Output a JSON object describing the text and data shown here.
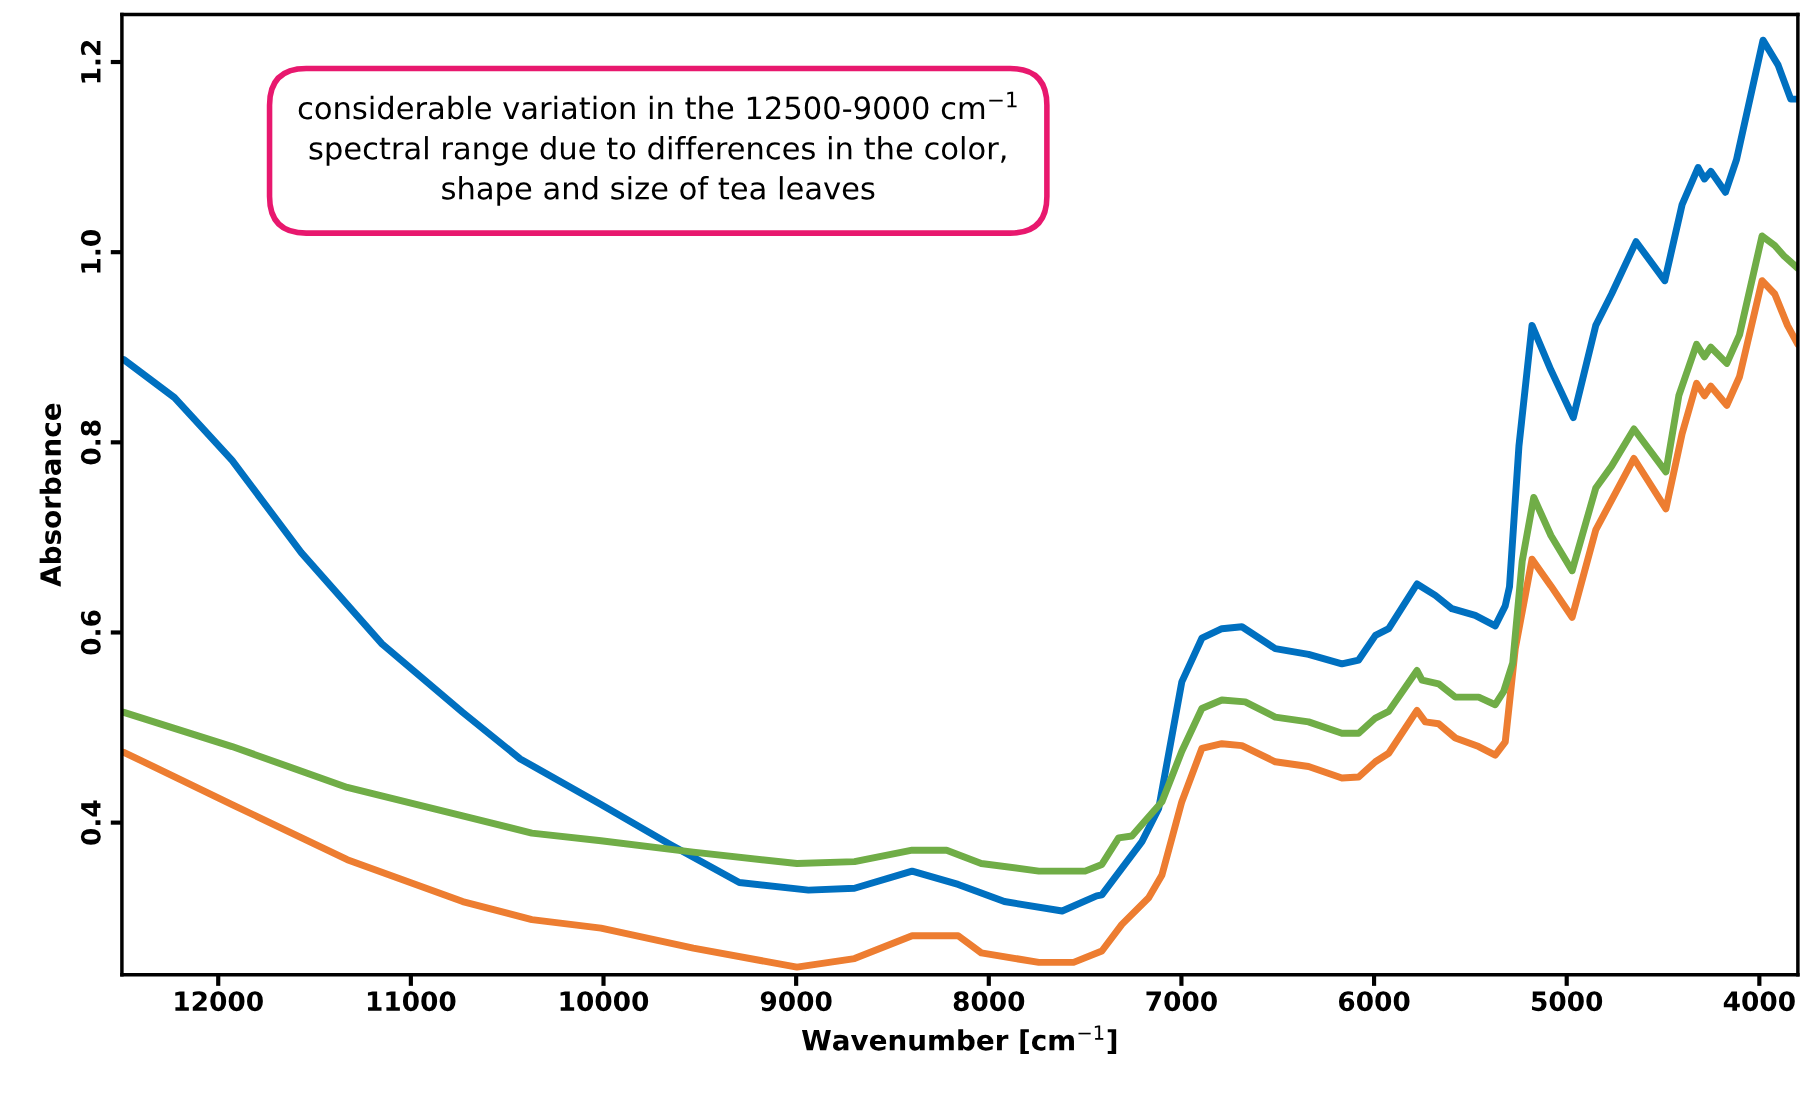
{
  "chart_data": {
    "type": "line",
    "xlabel": "Wavenumber [cm$^{−1}$]",
    "ylabel": "Absorbance",
    "annotations": [
      "considerable variation in the 12500-9000 cm$^{−1}$\nspectral range due to differences in the color,\nshape and size of tea leaves"
    ],
    "xlim": [
      12500,
      3800
    ],
    "ylim": [
      0.24,
      1.25
    ],
    "xticks": [
      12000,
      11000,
      10000,
      9000,
      8000,
      7000,
      6000,
      5000,
      4000
    ],
    "yticks": [
      0.4,
      0.6,
      0.8,
      {
        "value": 1.0,
        "label": "1.0"
      },
      1.2
    ],
    "grid": false,
    "marker": "none",
    "line_style": "solid",
    "series": [
      {
        "color": "#0070c0",
        "x": [
          12490,
          12227,
          11928,
          11569,
          11150,
          10731,
          10432,
          10013,
          9654,
          9295,
          8936,
          8697,
          8398,
          8159,
          7919,
          7619,
          7440,
          7413,
          7205,
          7118,
          6998,
          6894,
          6790,
          6686,
          6513,
          6340,
          6167,
          6080,
          5993,
          5924,
          5777,
          5682,
          5596,
          5475,
          5371,
          5319,
          5297,
          5248,
          5180,
          5082,
          4966,
          4849,
          4767,
          4640,
          4491,
          4401,
          4318,
          4285,
          4252,
          4176,
          4119,
          3981,
          3903,
          3837,
          3800
        ],
        "values": [
          0.887,
          0.847,
          0.781,
          0.684,
          0.588,
          0.516,
          0.467,
          0.419,
          0.377,
          0.337,
          0.329,
          0.331,
          0.349,
          0.335,
          0.317,
          0.307,
          0.323,
          0.324,
          0.38,
          0.415,
          0.548,
          0.594,
          0.604,
          0.606,
          0.583,
          0.577,
          0.567,
          0.571,
          0.597,
          0.604,
          0.651,
          0.639,
          0.625,
          0.618,
          0.607,
          0.628,
          0.648,
          0.796,
          0.923,
          0.876,
          0.826,
          0.923,
          0.956,
          1.011,
          0.97,
          1.05,
          1.089,
          1.077,
          1.085,
          1.063,
          1.097,
          1.223,
          1.197,
          1.161,
          1.161
        ]
      },
      {
        "color": "#ed7d31",
        "x": [
          12490,
          11928,
          11330,
          10731,
          10372,
          10013,
          9534,
          8996,
          8697,
          8398,
          8159,
          8039,
          7740,
          7560,
          7413,
          7309,
          7170,
          7101,
          6998,
          6894,
          6790,
          6686,
          6513,
          6340,
          6167,
          6080,
          5993,
          5924,
          5777,
          5734,
          5665,
          5578,
          5457,
          5371,
          5319,
          5267,
          5180,
          5082,
          4972,
          4849,
          4651,
          4485,
          4401,
          4326,
          4285,
          4252,
          4169,
          4103,
          3986,
          3920,
          3854,
          3800
        ],
        "values": [
          0.474,
          0.419,
          0.361,
          0.317,
          0.298,
          0.289,
          0.268,
          0.248,
          0.257,
          0.281,
          0.281,
          0.263,
          0.253,
          0.253,
          0.265,
          0.293,
          0.321,
          0.345,
          0.422,
          0.478,
          0.483,
          0.481,
          0.464,
          0.459,
          0.447,
          0.448,
          0.464,
          0.473,
          0.518,
          0.506,
          0.504,
          0.489,
          0.48,
          0.471,
          0.485,
          0.583,
          0.677,
          0.649,
          0.616,
          0.708,
          0.783,
          0.73,
          0.809,
          0.862,
          0.849,
          0.859,
          0.839,
          0.869,
          0.97,
          0.956,
          0.923,
          0.903
        ]
      },
      {
        "color": "#70ad47",
        "x": [
          12490,
          11928,
          11330,
          10731,
          10372,
          10013,
          9534,
          8996,
          8697,
          8398,
          8219,
          8039,
          7740,
          7500,
          7413,
          7326,
          7257,
          7205,
          7101,
          6998,
          6894,
          6790,
          6669,
          6513,
          6340,
          6167,
          6080,
          5993,
          5924,
          5777,
          5751,
          5665,
          5578,
          5457,
          5371,
          5327,
          5280,
          5231,
          5171,
          5082,
          4972,
          4849,
          4767,
          4651,
          4485,
          4418,
          4326,
          4285,
          4252,
          4169,
          4103,
          3986,
          3920,
          3872,
          3800
        ],
        "values": [
          0.516,
          0.48,
          0.437,
          0.407,
          0.389,
          0.381,
          0.369,
          0.357,
          0.359,
          0.371,
          0.371,
          0.357,
          0.349,
          0.349,
          0.356,
          0.384,
          0.386,
          0.398,
          0.422,
          0.475,
          0.52,
          0.529,
          0.527,
          0.511,
          0.506,
          0.494,
          0.494,
          0.51,
          0.517,
          0.56,
          0.55,
          0.546,
          0.532,
          0.532,
          0.524,
          0.538,
          0.568,
          0.675,
          0.742,
          0.702,
          0.665,
          0.752,
          0.775,
          0.814,
          0.769,
          0.849,
          0.903,
          0.89,
          0.9,
          0.883,
          0.913,
          1.017,
          1.007,
          0.996,
          0.983
        ]
      }
    ]
  }
}
